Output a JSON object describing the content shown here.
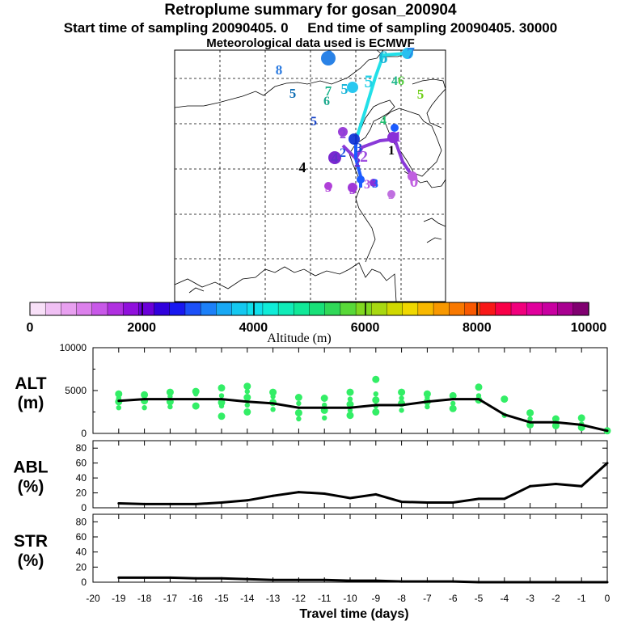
{
  "header": {
    "title": "Retroplume summary for gosan_200904",
    "line2_start": "Start time of sampling 20090405.    0",
    "line2_end": "End time of sampling 20090405. 30000",
    "line3": "Meteorological data used is ECMWF"
  },
  "colors": {
    "trajectory_1": "#22e0e8",
    "trajectory_2": "#8a3ad8",
    "trajectory_3": "#1c5cff",
    "dots": "#33ee66",
    "line": "#000000"
  },
  "map": {
    "labels": [
      {
        "text": "6",
        "color": "#2a82e6"
      },
      {
        "text": "6",
        "color": "#19b4d8"
      },
      {
        "text": "7",
        "color": "#2a82e6"
      },
      {
        "text": "8",
        "color": "#2a7ae0"
      },
      {
        "text": "5",
        "color": "#0f6eb4"
      },
      {
        "text": "7",
        "color": "#1ab48c"
      },
      {
        "text": "6",
        "color": "#1aa88c"
      },
      {
        "text": "5",
        "color": "#19b4d8"
      },
      {
        "text": "5",
        "color": "#22d0e8"
      },
      {
        "text": "4",
        "color": "#22b88c"
      },
      {
        "text": "6",
        "color": "#56d040"
      },
      {
        "text": "5",
        "color": "#70d018"
      },
      {
        "text": "5",
        "color": "#1442c8"
      },
      {
        "text": "4",
        "color": "#22c070"
      },
      {
        "text": "2",
        "color": "#8a40d8"
      },
      {
        "text": "1",
        "color": "#1030c8"
      },
      {
        "text": "3",
        "color": "#1a48d0"
      },
      {
        "text": "2",
        "color": "#2050e0"
      },
      {
        "text": "2",
        "color": "#a050e0"
      },
      {
        "text": "1",
        "color": "#8a30d8"
      },
      {
        "text": "1",
        "color": "#000000"
      },
      {
        "text": "4",
        "color": "#6030c8"
      },
      {
        "text": "2",
        "color": "#6a2ad0"
      },
      {
        "text": "4",
        "color": "#000000"
      },
      {
        "text": "0",
        "color": "#c060e0"
      },
      {
        "text": "3",
        "color": "#b040d8"
      },
      {
        "text": "3",
        "color": "#a038d8"
      },
      {
        "text": "3",
        "color": "#c070e0"
      },
      {
        "text": "3",
        "color": "#1c5cff"
      },
      {
        "text": "3",
        "color": "#b050e0"
      }
    ]
  },
  "colorbar": {
    "ticks": [
      "0",
      "2000",
      "4000",
      "6000",
      "8000",
      "10000"
    ],
    "label": "Altitude (m)",
    "colors": [
      "#f8e0f8",
      "#f0c0f4",
      "#e8a0f0",
      "#dc80ec",
      "#c858e8",
      "#b030e0",
      "#9010dc",
      "#6a00d8",
      "#3000dc",
      "#1818f0",
      "#1c50f8",
      "#1c80f8",
      "#18a8f4",
      "#14c8f0",
      "#10e0ec",
      "#10ecd8",
      "#10ecb8",
      "#10e898",
      "#18e078",
      "#30d858",
      "#58d838",
      "#80d820",
      "#a8d810",
      "#d0d800",
      "#f0d800",
      "#f8b800",
      "#f89800",
      "#f87800",
      "#f85800",
      "#f81818",
      "#f80048",
      "#f0007c",
      "#e0009c",
      "#c800a0",
      "#a80090",
      "#800070"
    ]
  },
  "chart_data": [
    {
      "type": "line",
      "name": "ALT",
      "ylabel": "ALT\n(m)",
      "ylabel_lines": [
        "ALT",
        "(m)"
      ],
      "ylim": [
        0,
        10000
      ],
      "yticks": [
        "10000",
        "5000",
        "0"
      ],
      "x": [
        -19,
        -18,
        -17,
        -16,
        -15,
        -14,
        -13,
        -12,
        -11,
        -10,
        -9,
        -8,
        -7,
        -6,
        -5,
        -4,
        -3,
        -2,
        -1,
        0
      ],
      "values": [
        3800,
        4000,
        4000,
        4000,
        4000,
        3700,
        3500,
        3000,
        3000,
        3000,
        3300,
        3300,
        3700,
        4000,
        4000,
        2200,
        1300,
        1300,
        1000,
        300
      ],
      "scatter": [
        {
          "x": -19,
          "y": [
            4600,
            4100,
            3700,
            3000
          ]
        },
        {
          "x": -18,
          "y": [
            4500,
            4000,
            3800,
            3000
          ]
        },
        {
          "x": -17,
          "y": [
            4800,
            4300,
            3700,
            3100
          ]
        },
        {
          "x": -16,
          "y": [
            4900,
            4600,
            3200
          ]
        },
        {
          "x": -15,
          "y": [
            5300,
            4400,
            3600,
            3200,
            2000
          ]
        },
        {
          "x": -14,
          "y": [
            5500,
            4900,
            4200,
            3300,
            2500
          ]
        },
        {
          "x": -13,
          "y": [
            4800,
            4300,
            3600,
            2800
          ]
        },
        {
          "x": -12,
          "y": [
            4200,
            3500,
            2400,
            1700
          ]
        },
        {
          "x": -11,
          "y": [
            4100,
            3300,
            2700,
            1800
          ]
        },
        {
          "x": -10,
          "y": [
            4800,
            4000,
            3400,
            2700,
            2100
          ]
        },
        {
          "x": -9,
          "y": [
            6300,
            4600,
            3900,
            3200,
            2500
          ]
        },
        {
          "x": -8,
          "y": [
            4800,
            4100,
            3500,
            2700
          ]
        },
        {
          "x": -7,
          "y": [
            4600,
            4200,
            3700,
            3100
          ]
        },
        {
          "x": -6,
          "y": [
            4400,
            3500,
            2900
          ]
        },
        {
          "x": -5,
          "y": [
            5400,
            4400,
            3900
          ]
        },
        {
          "x": -4,
          "y": [
            4000,
            2100
          ]
        },
        {
          "x": -3,
          "y": [
            2400,
            1700,
            1000
          ]
        },
        {
          "x": -2,
          "y": [
            1700,
            1000,
            900
          ]
        },
        {
          "x": -1,
          "y": [
            1800,
            1100,
            700
          ]
        },
        {
          "x": 0,
          "y": [
            300
          ]
        }
      ]
    },
    {
      "type": "line",
      "name": "ABL",
      "ylabel": "ABL\n(%)",
      "ylabel_lines": [
        "ABL",
        "(%)"
      ],
      "ylim": [
        0,
        90
      ],
      "yticks": [
        "80",
        "60",
        "40",
        "20",
        "0"
      ],
      "x": [
        -19,
        -18,
        -17,
        -16,
        -15,
        -14,
        -13,
        -12,
        -11,
        -10,
        -9,
        -8,
        -7,
        -6,
        -5,
        -4,
        -3,
        -2,
        -1,
        0
      ],
      "values": [
        6,
        5,
        5,
        5,
        7,
        10,
        16,
        21,
        19,
        13,
        18,
        8,
        7,
        7,
        12,
        12,
        29,
        32,
        29,
        60
      ]
    },
    {
      "type": "line",
      "name": "STR",
      "ylabel": "STR\n(%)",
      "ylabel_lines": [
        "STR",
        "(%)"
      ],
      "ylim": [
        0,
        90
      ],
      "yticks": [
        "80",
        "60",
        "40",
        "20",
        "0"
      ],
      "x": [
        -19,
        -18,
        -17,
        -16,
        -15,
        -14,
        -13,
        -12,
        -11,
        -10,
        -9,
        -8,
        -7,
        -6,
        -5,
        -4,
        -3,
        -2,
        -1,
        0
      ],
      "values": [
        6,
        6,
        6,
        5,
        5,
        4,
        3,
        3,
        3,
        2,
        2,
        1,
        1,
        1,
        0,
        0,
        0,
        0,
        0,
        0
      ]
    }
  ],
  "xaxis": {
    "label": "Travel time (days)",
    "ticks": [
      "-20",
      "-19",
      "-18",
      "-17",
      "-16",
      "-15",
      "-14",
      "-13",
      "-12",
      "-11",
      "-10",
      "-9",
      "-8",
      "-7",
      "-6",
      "-5",
      "-4",
      "-3",
      "-2",
      "-1",
      "0"
    ]
  }
}
